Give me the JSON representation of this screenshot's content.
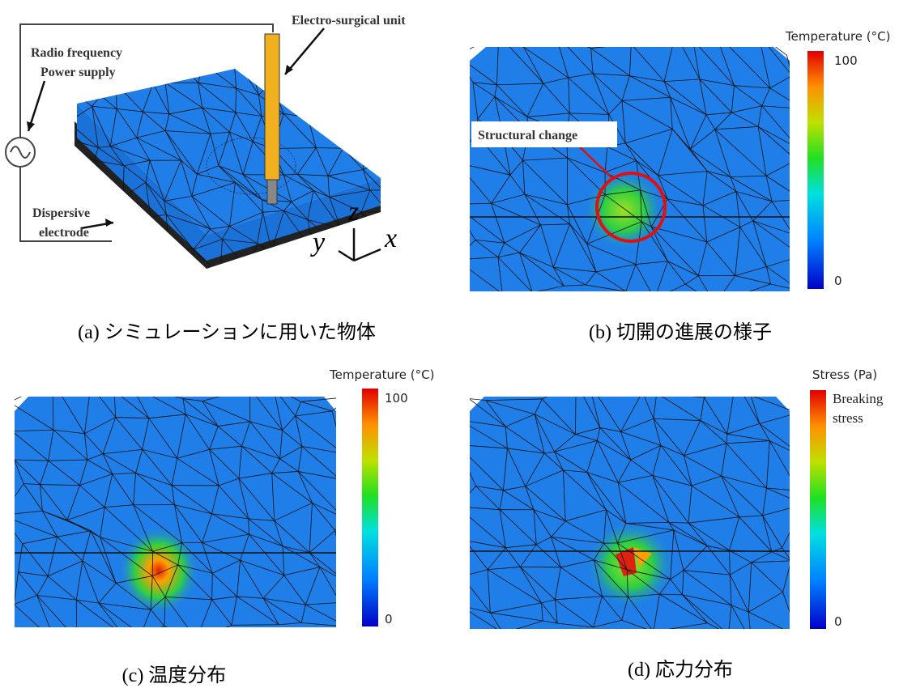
{
  "panel_a": {
    "caption": "(a) シミュレーションに用いた物体",
    "unit_label": "Electro-surgical unit",
    "power_label_1": "Radio frequency",
    "power_label_2": "Power supply",
    "electrode_label_1": "Dispersive",
    "electrode_label_2": "electrode",
    "axis_z": "z",
    "axis_y": "y",
    "axis_x": "x"
  },
  "panel_b": {
    "caption": "(b) 切開の進展の様子",
    "colorbar_title": "Temperature (°C)",
    "colorbar_max": "100",
    "colorbar_min": "0",
    "annotation": "Structural change"
  },
  "panel_c": {
    "caption": "(c) 温度分布",
    "colorbar_title": "Temperature (°C)",
    "colorbar_max": "100",
    "colorbar_min": "0"
  },
  "panel_d": {
    "caption": "(d) 応力分布",
    "colorbar_title": "Stress (Pa)",
    "colorbar_max_1": "Breaking",
    "colorbar_max_2": "stress",
    "colorbar_min": "0"
  }
}
